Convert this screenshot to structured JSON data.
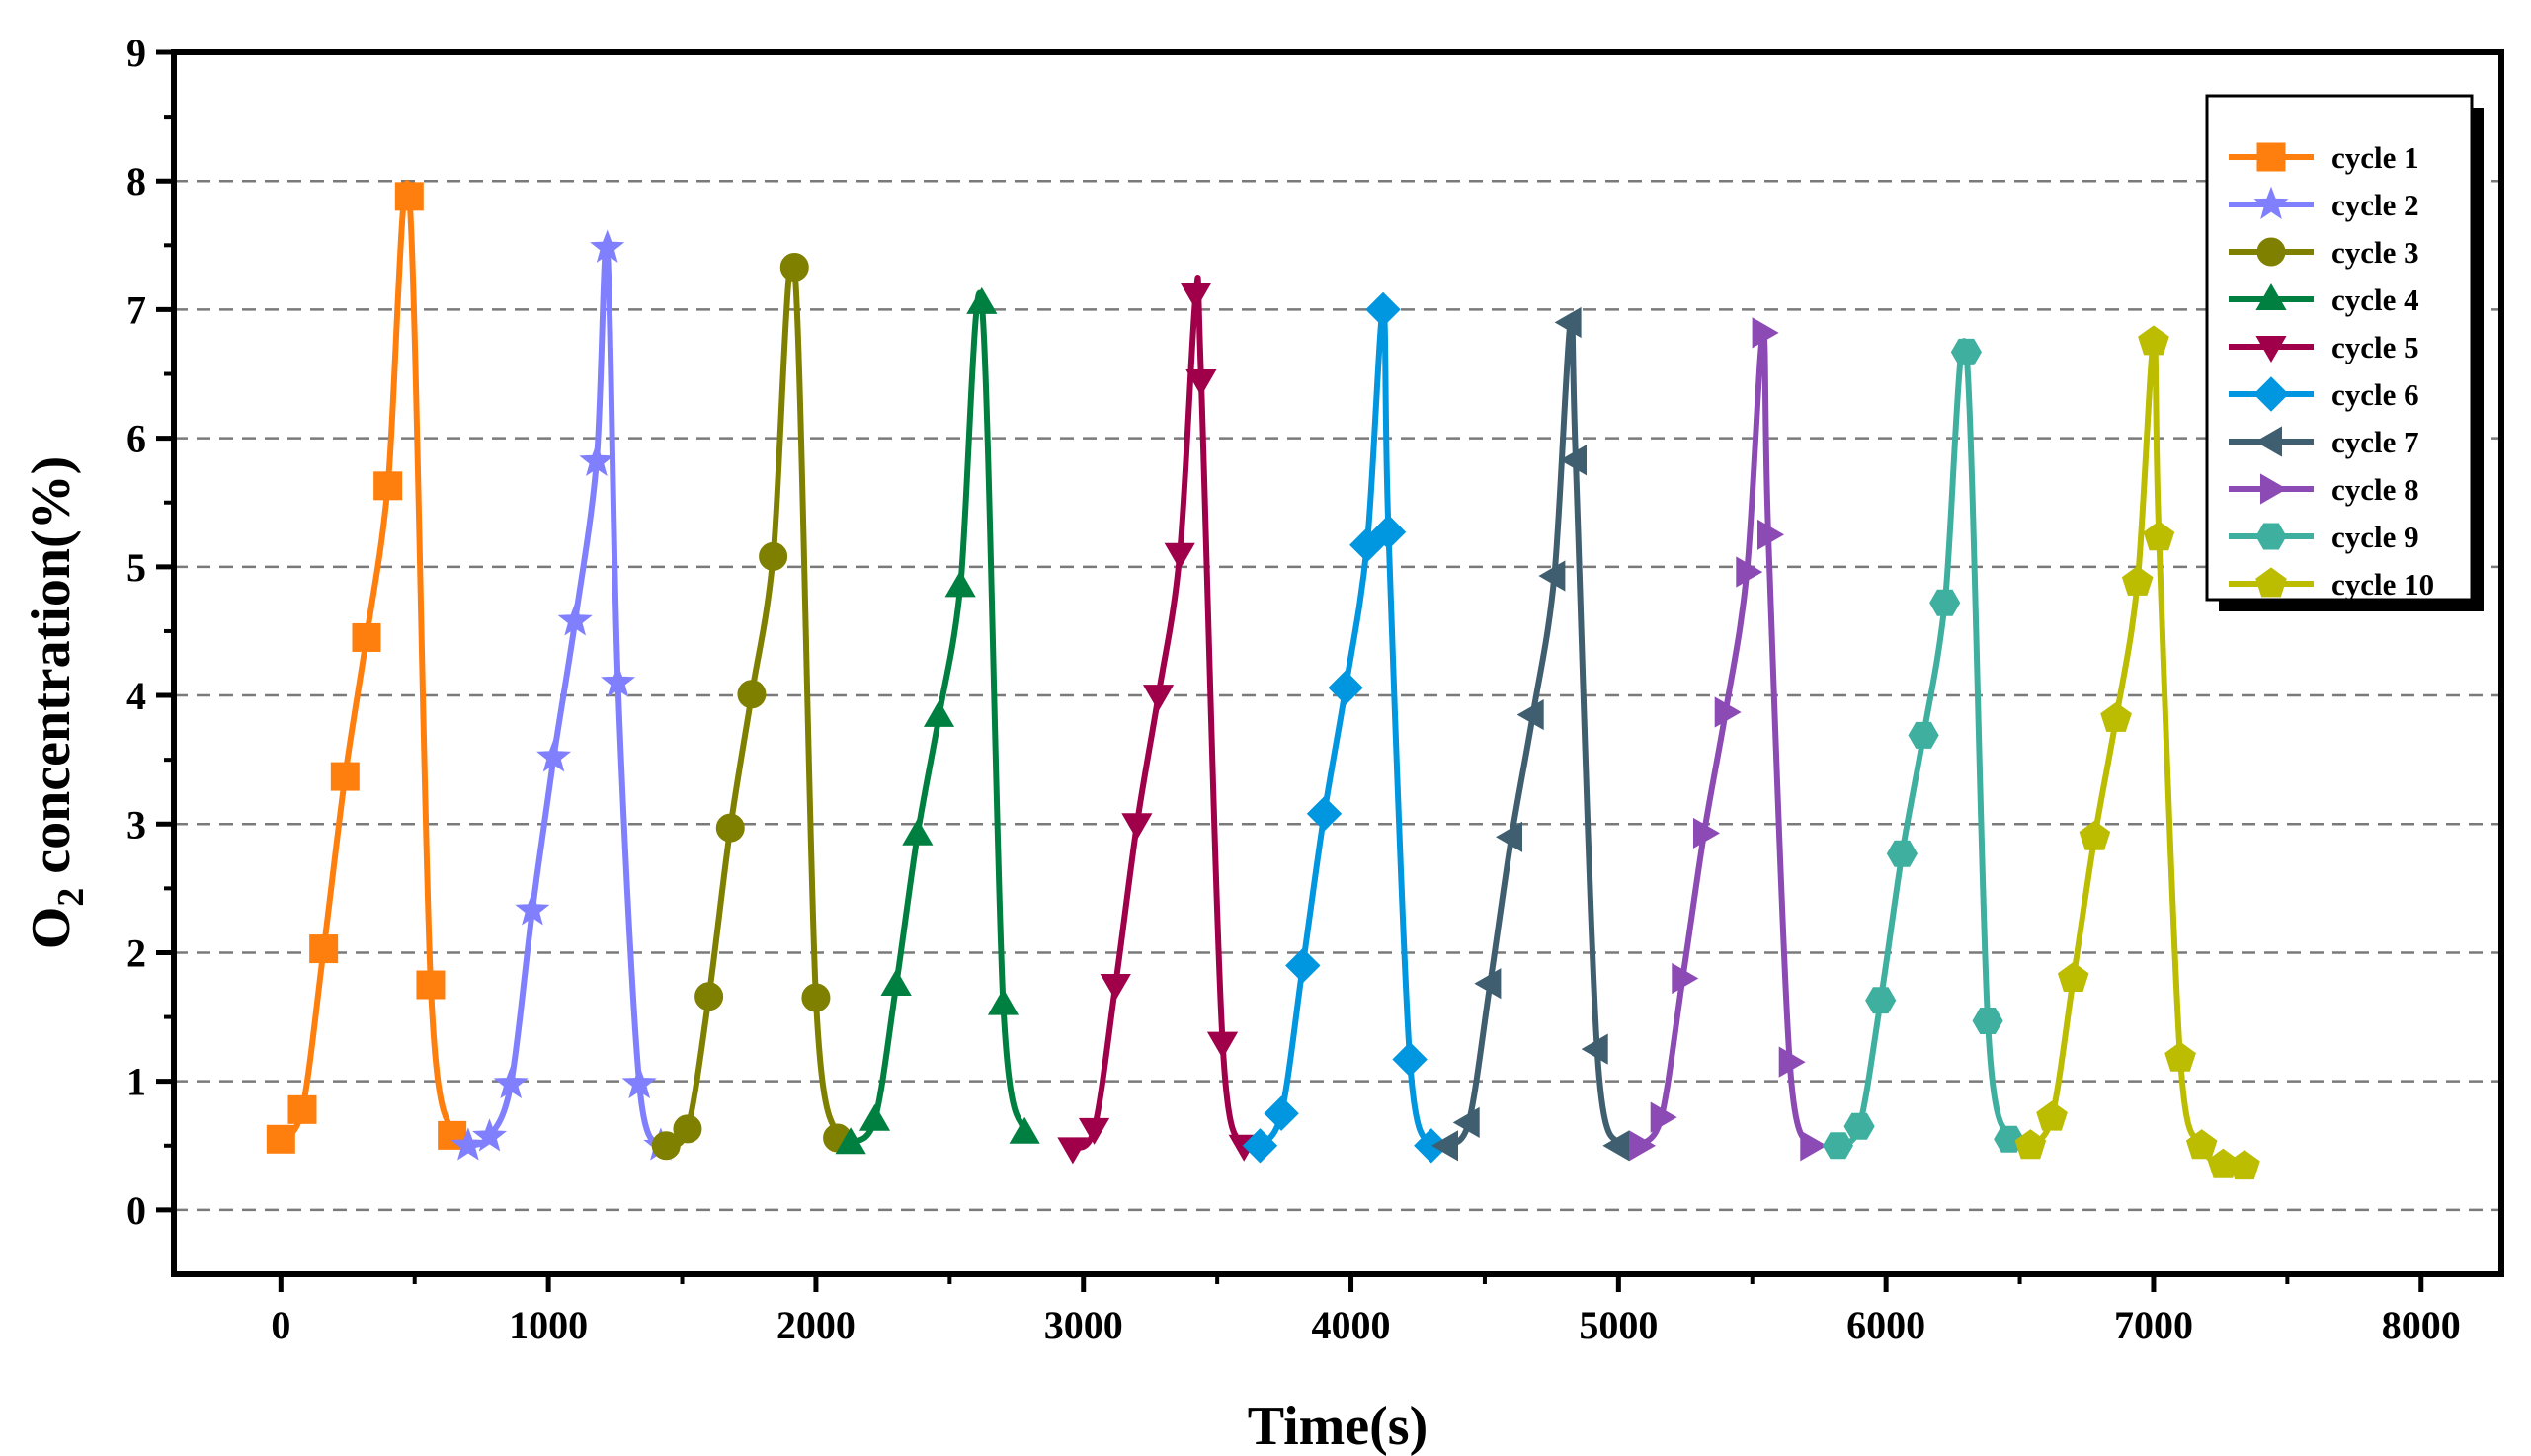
{
  "chart_data": {
    "type": "line",
    "xlabel": "Time(s)",
    "ylabel_main": "O",
    "ylabel_sub": "2",
    "ylabel_rest": " concentration(%)",
    "xlim": [
      -400,
      8300
    ],
    "ylim": [
      -0.5,
      9
    ],
    "x_ticks": [
      0,
      1000,
      2000,
      3000,
      4000,
      5000,
      6000,
      7000,
      8000
    ],
    "x_tick_labels": [
      "0",
      "1000",
      "2000",
      "3000",
      "4000",
      "5000",
      "6000",
      "7000",
      "8000"
    ],
    "y_ticks": [
      0,
      1,
      2,
      3,
      4,
      5,
      6,
      7,
      8,
      9
    ],
    "y_tick_labels": [
      "0",
      "1",
      "2",
      "3",
      "4",
      "5",
      "6",
      "7",
      "8",
      "9"
    ],
    "grid": "horizontal dashed",
    "legend_position": "top-right",
    "series": [
      {
        "name": "cycle 1",
        "color": "#ff7f0e",
        "marker": "square",
        "points": [
          [
            0,
            0.55
          ],
          [
            80,
            0.78
          ],
          [
            160,
            2.03
          ],
          [
            240,
            3.37
          ],
          [
            320,
            4.45
          ],
          [
            400,
            5.63
          ],
          [
            480,
            7.88
          ],
          [
            560,
            1.75
          ],
          [
            640,
            0.58
          ]
        ]
      },
      {
        "name": "cycle 2",
        "color": "#8080ff",
        "marker": "star",
        "points": [
          [
            700,
            0.5
          ],
          [
            780,
            0.57
          ],
          [
            860,
            0.98
          ],
          [
            940,
            2.33
          ],
          [
            1020,
            3.52
          ],
          [
            1100,
            4.58
          ],
          [
            1180,
            5.82
          ],
          [
            1220,
            7.48
          ],
          [
            1260,
            4.1
          ],
          [
            1340,
            0.98
          ],
          [
            1420,
            0.5
          ]
        ]
      },
      {
        "name": "cycle 3",
        "color": "#808000",
        "marker": "circle",
        "points": [
          [
            1440,
            0.5
          ],
          [
            1520,
            0.63
          ],
          [
            1600,
            1.66
          ],
          [
            1680,
            2.97
          ],
          [
            1760,
            4.01
          ],
          [
            1840,
            5.08
          ],
          [
            1920,
            7.33
          ],
          [
            2000,
            1.65
          ],
          [
            2080,
            0.56
          ]
        ]
      },
      {
        "name": "cycle 4",
        "color": "#008040",
        "marker": "triangle-up",
        "points": [
          [
            2130,
            0.52
          ],
          [
            2220,
            0.7
          ],
          [
            2300,
            1.75
          ],
          [
            2380,
            2.92
          ],
          [
            2460,
            3.84
          ],
          [
            2540,
            4.85
          ],
          [
            2620,
            7.05
          ],
          [
            2700,
            1.6
          ],
          [
            2780,
            0.6
          ]
        ]
      },
      {
        "name": "cycle 5",
        "color": "#a0004a",
        "marker": "triangle-down",
        "points": [
          [
            2960,
            0.48
          ],
          [
            3040,
            0.63
          ],
          [
            3120,
            1.75
          ],
          [
            3200,
            3.0
          ],
          [
            3280,
            4.0
          ],
          [
            3360,
            5.1
          ],
          [
            3420,
            7.12
          ],
          [
            3440,
            6.45
          ],
          [
            3520,
            1.3
          ],
          [
            3600,
            0.5
          ]
        ]
      },
      {
        "name": "cycle 6",
        "color": "#0096e0",
        "marker": "diamond",
        "points": [
          [
            3660,
            0.5
          ],
          [
            3740,
            0.75
          ],
          [
            3820,
            1.9
          ],
          [
            3900,
            3.08
          ],
          [
            3980,
            4.06
          ],
          [
            4060,
            5.17
          ],
          [
            4120,
            7.0
          ],
          [
            4140,
            5.27
          ],
          [
            4220,
            1.17
          ],
          [
            4300,
            0.5
          ]
        ]
      },
      {
        "name": "cycle 7",
        "color": "#3f5f70",
        "marker": "triangle-left",
        "points": [
          [
            4360,
            0.5
          ],
          [
            4440,
            0.68
          ],
          [
            4520,
            1.76
          ],
          [
            4600,
            2.9
          ],
          [
            4680,
            3.85
          ],
          [
            4760,
            4.93
          ],
          [
            4820,
            6.9
          ],
          [
            4840,
            5.83
          ],
          [
            4920,
            1.25
          ],
          [
            5000,
            0.5
          ]
        ]
      },
      {
        "name": "cycle 8",
        "color": "#8c4bb4",
        "marker": "triangle-right",
        "points": [
          [
            5080,
            0.5
          ],
          [
            5160,
            0.72
          ],
          [
            5240,
            1.8
          ],
          [
            5320,
            2.93
          ],
          [
            5400,
            3.87
          ],
          [
            5480,
            4.96
          ],
          [
            5540,
            6.82
          ],
          [
            5560,
            5.25
          ],
          [
            5640,
            1.15
          ],
          [
            5720,
            0.5
          ]
        ]
      },
      {
        "name": "cycle 9",
        "color": "#3fb0a0",
        "marker": "hexagon",
        "points": [
          [
            5820,
            0.5
          ],
          [
            5900,
            0.65
          ],
          [
            5980,
            1.63
          ],
          [
            6060,
            2.77
          ],
          [
            6140,
            3.69
          ],
          [
            6220,
            4.72
          ],
          [
            6300,
            6.67
          ],
          [
            6380,
            1.47
          ],
          [
            6460,
            0.55
          ]
        ]
      },
      {
        "name": "cycle 10",
        "color": "#bcbc00",
        "marker": "pentagon",
        "points": [
          [
            6540,
            0.5
          ],
          [
            6620,
            0.72
          ],
          [
            6700,
            1.8
          ],
          [
            6780,
            2.9
          ],
          [
            6860,
            3.82
          ],
          [
            6940,
            4.88
          ],
          [
            7000,
            6.75
          ],
          [
            7020,
            5.23
          ],
          [
            7100,
            1.18
          ],
          [
            7180,
            0.5
          ],
          [
            7260,
            0.35
          ],
          [
            7340,
            0.34
          ]
        ]
      }
    ]
  }
}
